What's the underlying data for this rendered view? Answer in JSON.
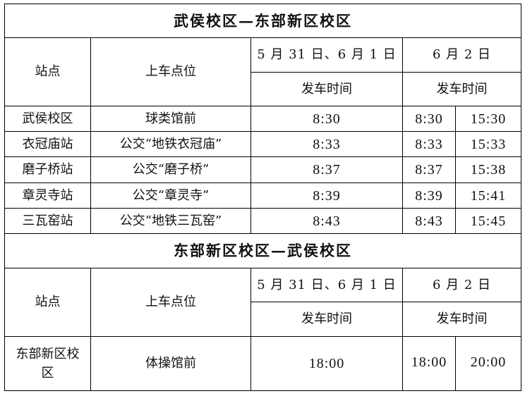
{
  "sections": [
    {
      "title": "武侯校区—东部新区校区",
      "headers": {
        "station": "站点",
        "boarding_point": "上车点位",
        "date_group_1": "5 月 31 日、6 月 1 日",
        "date_group_2": "6 月 2 日",
        "departure_time_1": "发车时间",
        "departure_time_2": "发车时间"
      },
      "rows": [
        {
          "station": "武侯校区",
          "boarding_point": "球类馆前",
          "time_may31_jun1": "8:30",
          "time_jun2_a": "8:30",
          "time_jun2_b": "15:30"
        },
        {
          "station": "衣冠庙站",
          "boarding_point": "公交“地铁衣冠庙”",
          "time_may31_jun1": "8:33",
          "time_jun2_a": "8:33",
          "time_jun2_b": "15:33"
        },
        {
          "station": "磨子桥站",
          "boarding_point": "公交“磨子桥”",
          "time_may31_jun1": "8:37",
          "time_jun2_a": "8:37",
          "time_jun2_b": "15:38"
        },
        {
          "station": "章灵寺站",
          "boarding_point": "公交“章灵寺”",
          "time_may31_jun1": "8:39",
          "time_jun2_a": "8:39",
          "time_jun2_b": "15:41"
        },
        {
          "station": "三瓦窑站",
          "boarding_point": "公交“地铁三瓦窑”",
          "time_may31_jun1": "8:43",
          "time_jun2_a": "8:43",
          "time_jun2_b": "15:45"
        }
      ]
    },
    {
      "title": "东部新区校区—武侯校区",
      "headers": {
        "station": "站点",
        "boarding_point": "上车点位",
        "date_group_1": "5 月 31 日、6 月 1 日",
        "date_group_2": "6 月 2 日",
        "departure_time_1": "发车时间",
        "departure_time_2": "发车时间"
      },
      "rows": [
        {
          "station": "东部新区校区",
          "boarding_point": "体操馆前",
          "time_may31_jun1": "18:00",
          "time_jun2_a": "18:00",
          "time_jun2_b": "20:00"
        }
      ]
    }
  ]
}
